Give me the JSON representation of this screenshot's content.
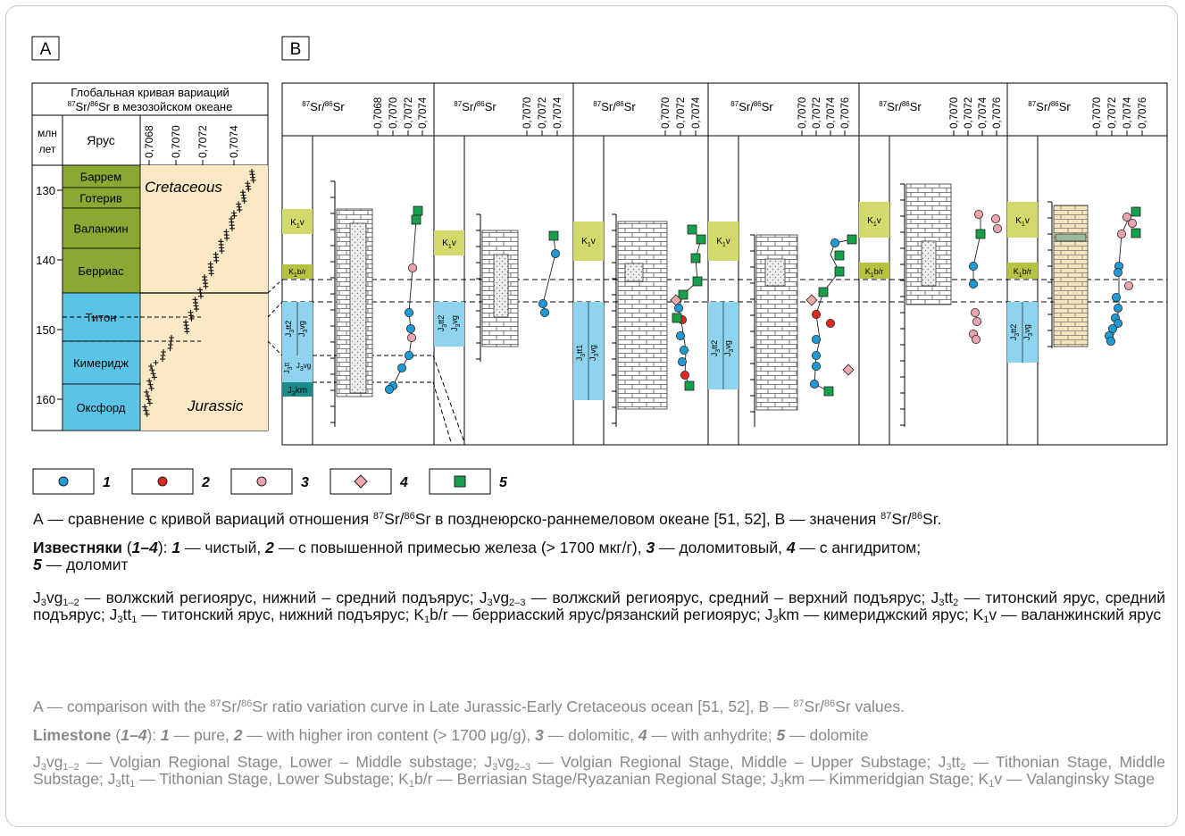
{
  "panels": {
    "a": "A",
    "b": "B"
  },
  "curve": {
    "title_line1": "Глобальная кривая вариаций",
    "title_line2_iso": "Sr/",
    "title_line2_rest": "Sr в мезозойском океане",
    "age_header_1": "млн",
    "age_header_2": "лет",
    "stage_header": "Ярус",
    "ticks": [
      "0,7068",
      "0,7070",
      "0,7072",
      "0,7074"
    ],
    "ages": [
      "130",
      "140",
      "150",
      "160"
    ],
    "stages": [
      {
        "name": "Баррем",
        "color": "#8ba832"
      },
      {
        "name": "Готерив",
        "color": "#8ba832"
      },
      {
        "name": "Валанжин",
        "color": "#8ba832"
      },
      {
        "name": "Берриас",
        "color": "#8ba832"
      },
      {
        "name": "Титон",
        "color": "#5bc4e6"
      },
      {
        "name": "Кимеридж",
        "color": "#5bc4e6"
      },
      {
        "name": "Оксфорд",
        "color": "#5bc4e6"
      }
    ],
    "label_cretaceous": "Cretaceous",
    "label_jurassic": "Jurassic"
  },
  "sections": [
    {
      "header": "Sr/",
      "header2": "Sr",
      "ticks": [
        "0,7068",
        "0,7070",
        "0,7072",
        "0,7074"
      ]
    },
    {
      "header": "Sr/",
      "header2": "Sr",
      "ticks": [
        "0,7070",
        "0,7072",
        "0,7074"
      ]
    },
    {
      "header": "Sr/",
      "header2": "Sr",
      "ticks": [
        "0,7070",
        "0,7072",
        "0,7074"
      ]
    },
    {
      "header": "Sr/",
      "header2": "Sr",
      "ticks": [
        "0,7070",
        "0,7072",
        "0,7074",
        "0,7076"
      ]
    },
    {
      "header": "Sr/",
      "header2": "Sr",
      "ticks": [
        "0,7070",
        "0,7072",
        "0,7074",
        "0,7076"
      ]
    },
    {
      "header": "Sr/",
      "header2": "Sr",
      "ticks": [
        "0,7070",
        "0,7072",
        "0,7074",
        "0,7076"
      ]
    }
  ],
  "strat_labels": {
    "k1v": "K",
    "k1v_rest": "v",
    "k1br": "K",
    "k1br_rest": "b/r",
    "j3tt2": "J",
    "j3tt2_rest": "tt",
    "j3vg": "J",
    "j3vg_rest": "vg",
    "j3km": "J",
    "j3km_rest": "km",
    "j3tt1": "J",
    "j3tt1_rest": "tt",
    "sub1": "1",
    "sub2": "2",
    "sub3": "3",
    "sub12": "1-2",
    "sub23": "2-3"
  },
  "legend": [
    "1",
    "2",
    "3",
    "4",
    "5"
  ],
  "legend_colors": {
    "pure": "#1f9ad6",
    "iron": "#e02a1f",
    "dolomitic": "#eba3ad",
    "anhydrite": "#f2a6ad",
    "dolomite": "#16a04a"
  },
  "caption_ru": {
    "p1_a": "А — сравнение с кривой вариаций отношения ",
    "p1_b": "Sr/",
    "p1_c": "Sr в позднеюрско-раннемеловом океане [51, 52], B — значения ",
    "p1_d": "Sr/",
    "p1_e": "Sr.",
    "p2_title": "Известняки",
    "p2_range": "1–4",
    "p2_1": "1",
    "p2_1t": " — чистый, ",
    "p2_2": "2",
    "p2_2t": " — с повышенной примесью железа (> 1700 мкг/г), ",
    "p2_3": "3",
    "p2_3t": " — доломитовый, ",
    "p2_4": "4",
    "p2_4t": " — с ангидритом; ",
    "p2_5": "5",
    "p2_5t": " — доломит",
    "p3_a": "vg",
    "p3_a2": " — волжский региоярус, нижний – средний подъярус; J",
    "p3_b": "vg",
    "p3_b2": " — волжский региоярус, средний – верхний подъярус; J",
    "p3_c": "tt",
    "p3_c2": " — титонский ярус, средний подъярус; J",
    "p3_d": "tt",
    "p3_d2": " — титонский ярус, нижний подъярус; K",
    "p3_e": "b/r — берриасский ярус/рязанский региоярус; J",
    "p3_f": "km — кимериджский ярус; K",
    "p3_g": "v — валанжинский ярус"
  },
  "caption_en": {
    "p1_a": "A — comparison with the ",
    "p1_b": "Sr/",
    "p1_c": "Sr ratio variation curve in Late Jurassic-Early Cretaceous ocean [51, 52], B — ",
    "p1_d": "Sr/",
    "p1_e": "Sr values.",
    "p2_title": "Limestone",
    "p2_range": "1–4",
    "p2_1": "1",
    "p2_1t": " — pure, ",
    "p2_2": "2",
    "p2_2t": " — with higher iron content (> 1700 μg/g), ",
    "p2_3": "3",
    "p2_3t": " — dolomitic, ",
    "p2_4": "4",
    "p2_4t": " — with anhydrite; ",
    "p2_5": "5",
    "p2_5t": " — dolomite",
    "p3_a": "vg",
    "p3_a2": " — Volgian Regional Stage, Lower – Middle substage; J",
    "p3_b": "vg",
    "p3_b2": " — Volgian Regional Stage, Middle – Upper Substage; J",
    "p3_c": "tt",
    "p3_c2": " — Tithonian Stage, Middle Substage; J",
    "p3_d": "tt",
    "p3_d2": " — Tithonian Stage, Lower Substage; K",
    "p3_e": "b/r — Berriasian Stage/Ryazanian Regional Stage; J",
    "p3_f": "km — Kimmeridgian Stage; K",
    "p3_g": "v — Valanginsky Stage"
  },
  "iso": {
    "a": "87",
    "b": "86",
    "s1": "1",
    "s2": "2",
    "s3": "3",
    "s12": "1–2",
    "s23": "2–3"
  }
}
